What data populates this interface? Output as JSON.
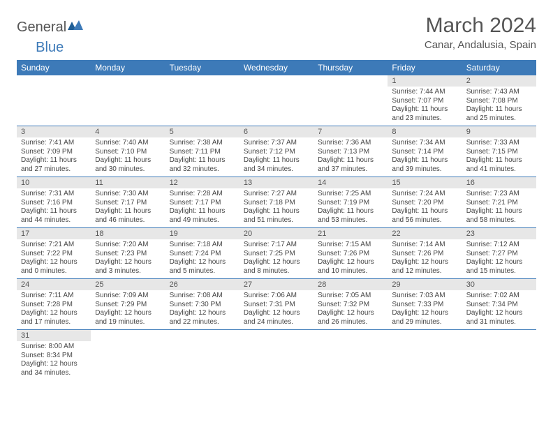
{
  "brand": {
    "word1": "General",
    "word2": "Blue"
  },
  "title": "March 2024",
  "location": "Canar, Andalusia, Spain",
  "colors": {
    "header_bg": "#3d7ab8",
    "header_text": "#ffffff",
    "daynum_bg": "#e7e7e7",
    "text": "#555555",
    "line": "#3d7ab8"
  },
  "weekdays": [
    "Sunday",
    "Monday",
    "Tuesday",
    "Wednesday",
    "Thursday",
    "Friday",
    "Saturday"
  ],
  "weeks": [
    [
      null,
      null,
      null,
      null,
      null,
      {
        "n": "1",
        "sr": "Sunrise: 7:44 AM",
        "ss": "Sunset: 7:07 PM",
        "dl": "Daylight: 11 hours and 23 minutes."
      },
      {
        "n": "2",
        "sr": "Sunrise: 7:43 AM",
        "ss": "Sunset: 7:08 PM",
        "dl": "Daylight: 11 hours and 25 minutes."
      }
    ],
    [
      {
        "n": "3",
        "sr": "Sunrise: 7:41 AM",
        "ss": "Sunset: 7:09 PM",
        "dl": "Daylight: 11 hours and 27 minutes."
      },
      {
        "n": "4",
        "sr": "Sunrise: 7:40 AM",
        "ss": "Sunset: 7:10 PM",
        "dl": "Daylight: 11 hours and 30 minutes."
      },
      {
        "n": "5",
        "sr": "Sunrise: 7:38 AM",
        "ss": "Sunset: 7:11 PM",
        "dl": "Daylight: 11 hours and 32 minutes."
      },
      {
        "n": "6",
        "sr": "Sunrise: 7:37 AM",
        "ss": "Sunset: 7:12 PM",
        "dl": "Daylight: 11 hours and 34 minutes."
      },
      {
        "n": "7",
        "sr": "Sunrise: 7:36 AM",
        "ss": "Sunset: 7:13 PM",
        "dl": "Daylight: 11 hours and 37 minutes."
      },
      {
        "n": "8",
        "sr": "Sunrise: 7:34 AM",
        "ss": "Sunset: 7:14 PM",
        "dl": "Daylight: 11 hours and 39 minutes."
      },
      {
        "n": "9",
        "sr": "Sunrise: 7:33 AM",
        "ss": "Sunset: 7:15 PM",
        "dl": "Daylight: 11 hours and 41 minutes."
      }
    ],
    [
      {
        "n": "10",
        "sr": "Sunrise: 7:31 AM",
        "ss": "Sunset: 7:16 PM",
        "dl": "Daylight: 11 hours and 44 minutes."
      },
      {
        "n": "11",
        "sr": "Sunrise: 7:30 AM",
        "ss": "Sunset: 7:17 PM",
        "dl": "Daylight: 11 hours and 46 minutes."
      },
      {
        "n": "12",
        "sr": "Sunrise: 7:28 AM",
        "ss": "Sunset: 7:17 PM",
        "dl": "Daylight: 11 hours and 49 minutes."
      },
      {
        "n": "13",
        "sr": "Sunrise: 7:27 AM",
        "ss": "Sunset: 7:18 PM",
        "dl": "Daylight: 11 hours and 51 minutes."
      },
      {
        "n": "14",
        "sr": "Sunrise: 7:25 AM",
        "ss": "Sunset: 7:19 PM",
        "dl": "Daylight: 11 hours and 53 minutes."
      },
      {
        "n": "15",
        "sr": "Sunrise: 7:24 AM",
        "ss": "Sunset: 7:20 PM",
        "dl": "Daylight: 11 hours and 56 minutes."
      },
      {
        "n": "16",
        "sr": "Sunrise: 7:23 AM",
        "ss": "Sunset: 7:21 PM",
        "dl": "Daylight: 11 hours and 58 minutes."
      }
    ],
    [
      {
        "n": "17",
        "sr": "Sunrise: 7:21 AM",
        "ss": "Sunset: 7:22 PM",
        "dl": "Daylight: 12 hours and 0 minutes."
      },
      {
        "n": "18",
        "sr": "Sunrise: 7:20 AM",
        "ss": "Sunset: 7:23 PM",
        "dl": "Daylight: 12 hours and 3 minutes."
      },
      {
        "n": "19",
        "sr": "Sunrise: 7:18 AM",
        "ss": "Sunset: 7:24 PM",
        "dl": "Daylight: 12 hours and 5 minutes."
      },
      {
        "n": "20",
        "sr": "Sunrise: 7:17 AM",
        "ss": "Sunset: 7:25 PM",
        "dl": "Daylight: 12 hours and 8 minutes."
      },
      {
        "n": "21",
        "sr": "Sunrise: 7:15 AM",
        "ss": "Sunset: 7:26 PM",
        "dl": "Daylight: 12 hours and 10 minutes."
      },
      {
        "n": "22",
        "sr": "Sunrise: 7:14 AM",
        "ss": "Sunset: 7:26 PM",
        "dl": "Daylight: 12 hours and 12 minutes."
      },
      {
        "n": "23",
        "sr": "Sunrise: 7:12 AM",
        "ss": "Sunset: 7:27 PM",
        "dl": "Daylight: 12 hours and 15 minutes."
      }
    ],
    [
      {
        "n": "24",
        "sr": "Sunrise: 7:11 AM",
        "ss": "Sunset: 7:28 PM",
        "dl": "Daylight: 12 hours and 17 minutes."
      },
      {
        "n": "25",
        "sr": "Sunrise: 7:09 AM",
        "ss": "Sunset: 7:29 PM",
        "dl": "Daylight: 12 hours and 19 minutes."
      },
      {
        "n": "26",
        "sr": "Sunrise: 7:08 AM",
        "ss": "Sunset: 7:30 PM",
        "dl": "Daylight: 12 hours and 22 minutes."
      },
      {
        "n": "27",
        "sr": "Sunrise: 7:06 AM",
        "ss": "Sunset: 7:31 PM",
        "dl": "Daylight: 12 hours and 24 minutes."
      },
      {
        "n": "28",
        "sr": "Sunrise: 7:05 AM",
        "ss": "Sunset: 7:32 PM",
        "dl": "Daylight: 12 hours and 26 minutes."
      },
      {
        "n": "29",
        "sr": "Sunrise: 7:03 AM",
        "ss": "Sunset: 7:33 PM",
        "dl": "Daylight: 12 hours and 29 minutes."
      },
      {
        "n": "30",
        "sr": "Sunrise: 7:02 AM",
        "ss": "Sunset: 7:34 PM",
        "dl": "Daylight: 12 hours and 31 minutes."
      }
    ],
    [
      {
        "n": "31",
        "sr": "Sunrise: 8:00 AM",
        "ss": "Sunset: 8:34 PM",
        "dl": "Daylight: 12 hours and 34 minutes."
      },
      null,
      null,
      null,
      null,
      null,
      null
    ]
  ]
}
